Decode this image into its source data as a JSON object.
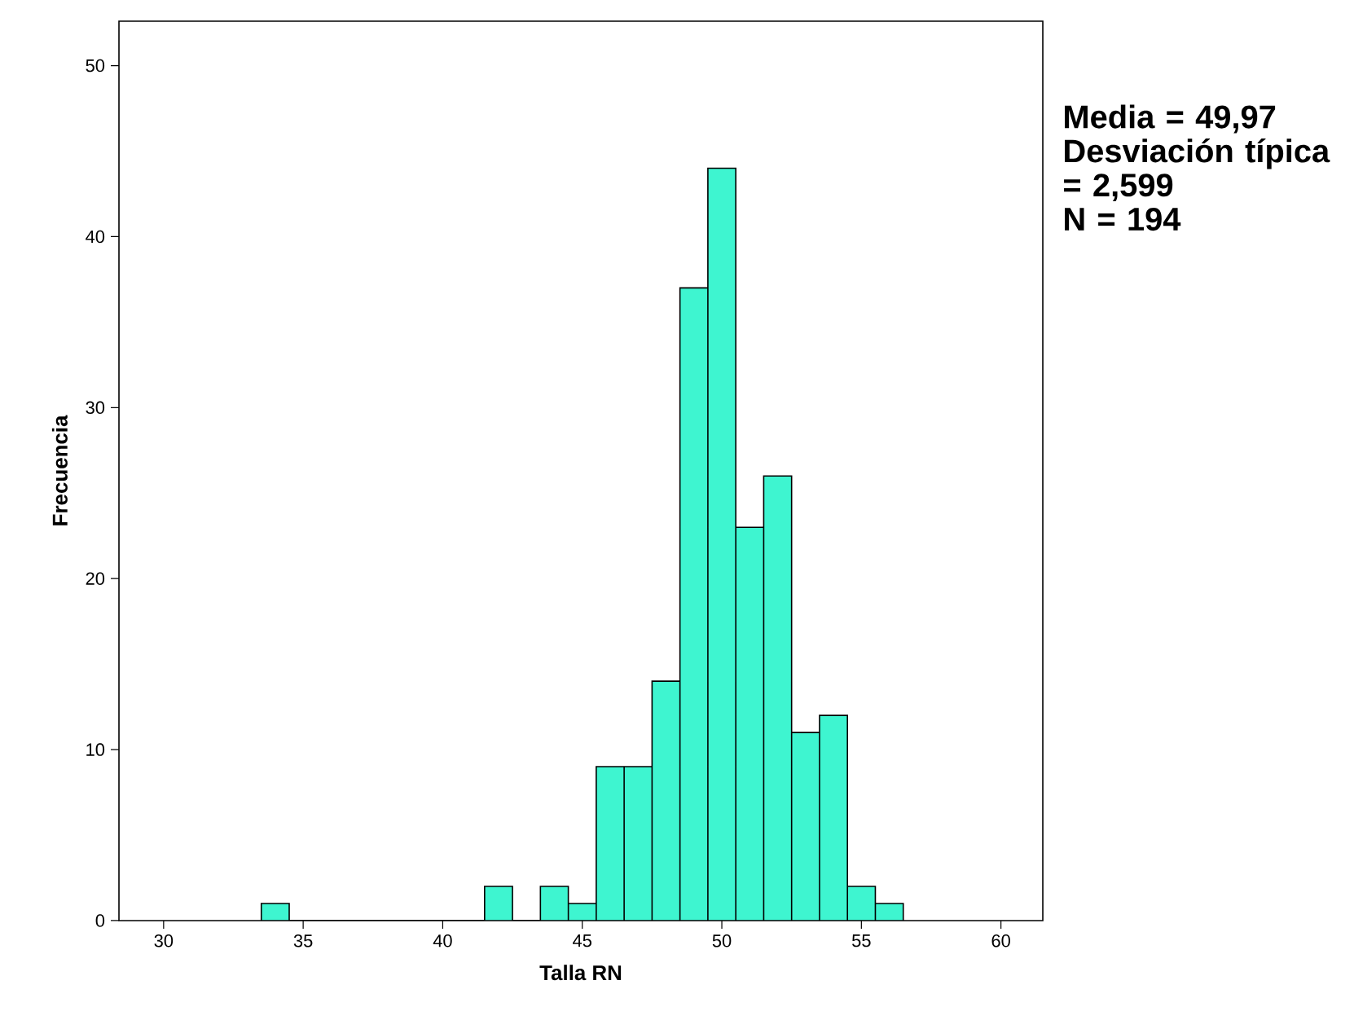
{
  "chart_data": {
    "type": "histogram",
    "xlabel": "Talla RN",
    "ylabel": "Frecuencia",
    "bins": [
      33.5,
      34.5,
      35.5,
      36.5,
      37.5,
      38.5,
      39.5,
      40.5,
      41.5,
      42.5,
      43.5,
      44.5,
      45.5,
      46.5,
      47.5,
      48.5,
      49.5,
      50.5,
      51.5,
      52.5,
      53.5,
      54.5,
      55.5,
      56.5
    ],
    "values": [
      1,
      0,
      0,
      0,
      0,
      0,
      0,
      0,
      2,
      0,
      2,
      1,
      9,
      9,
      14,
      37,
      44,
      23,
      26,
      11,
      12,
      2,
      1
    ],
    "color": "#3ef5d0",
    "xlim": [
      28.4,
      61.5
    ],
    "ylim": [
      0,
      52.6
    ],
    "xticks": [
      30,
      35,
      40,
      45,
      50,
      55,
      60
    ],
    "yticks": [
      0,
      10,
      20,
      30,
      40,
      50
    ],
    "annotations": [
      "Media = 49,97",
      "Desviación típica = 2,599",
      "N = 194"
    ]
  }
}
